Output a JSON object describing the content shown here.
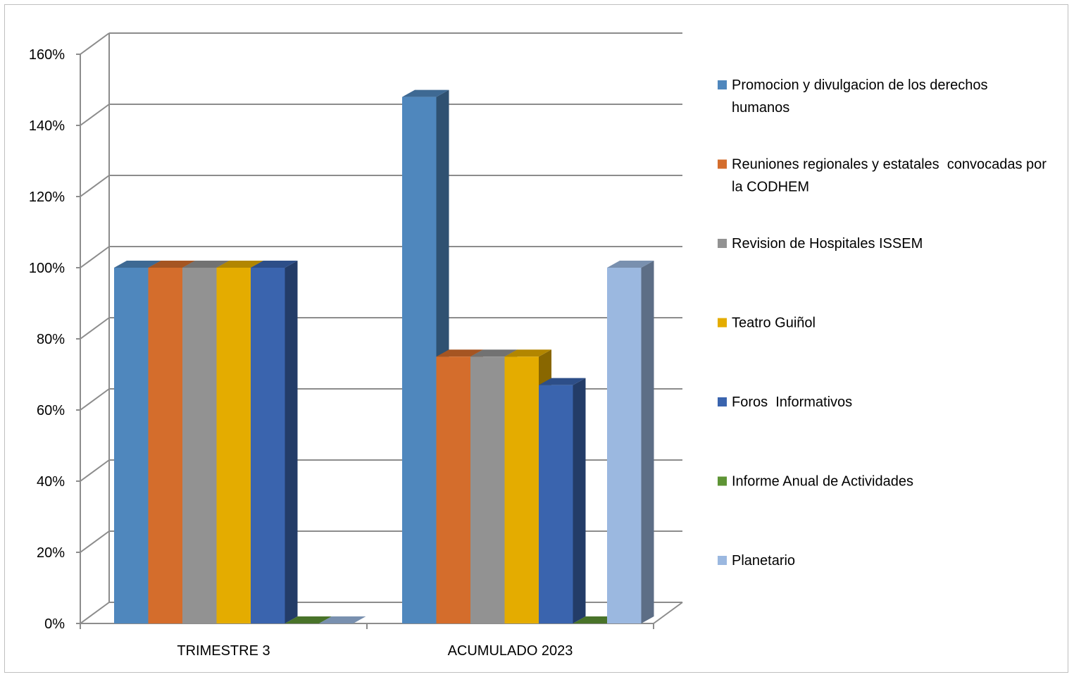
{
  "chart_data": {
    "type": "bar",
    "style": "3d-clustered-column",
    "categories": [
      "TRIMESTRE 3",
      "ACUMULADO 2023"
    ],
    "series": [
      {
        "name": "Promocion y divulgacion de los derechos humanos",
        "color": "#4f87bd",
        "values": [
          100,
          148
        ]
      },
      {
        "name": "Reuniones regionales y estatales  convocadas por la CODHEM",
        "color": "#d46d2c",
        "values": [
          100,
          75
        ]
      },
      {
        "name": "Revision de Hospitales ISSEM",
        "color": "#929292",
        "values": [
          100,
          75
        ]
      },
      {
        "name": "Teatro Guiñol",
        "color": "#e4ac00",
        "values": [
          100,
          75
        ]
      },
      {
        "name": "Foros  Informativos",
        "color": "#3a64ae",
        "values": [
          100,
          67
        ]
      },
      {
        "name": "Informe Anual de Actividades",
        "color": "#5e9435",
        "values": [
          0,
          0
        ]
      },
      {
        "name": "Planetario",
        "color": "#9bb8e0",
        "values": [
          0,
          100
        ]
      }
    ],
    "legend_lines": [
      [
        "Promocion y divulgacion de los derechos",
        "humanos"
      ],
      [
        "Reuniones regionales y estatales  convocadas por",
        "la CODHEM"
      ],
      [
        "Revision de Hospitales ISSEM"
      ],
      [
        "Teatro Guiñol"
      ],
      [
        "Foros  Informativos"
      ],
      [
        "Informe Anual de Actividades"
      ],
      [
        "Planetario"
      ]
    ],
    "y_ticks": [
      "0%",
      "20%",
      "40%",
      "60%",
      "80%",
      "100%",
      "120%",
      "140%",
      "160%"
    ],
    "ylim": [
      0,
      160
    ],
    "grid": true,
    "legend_position": "right"
  }
}
